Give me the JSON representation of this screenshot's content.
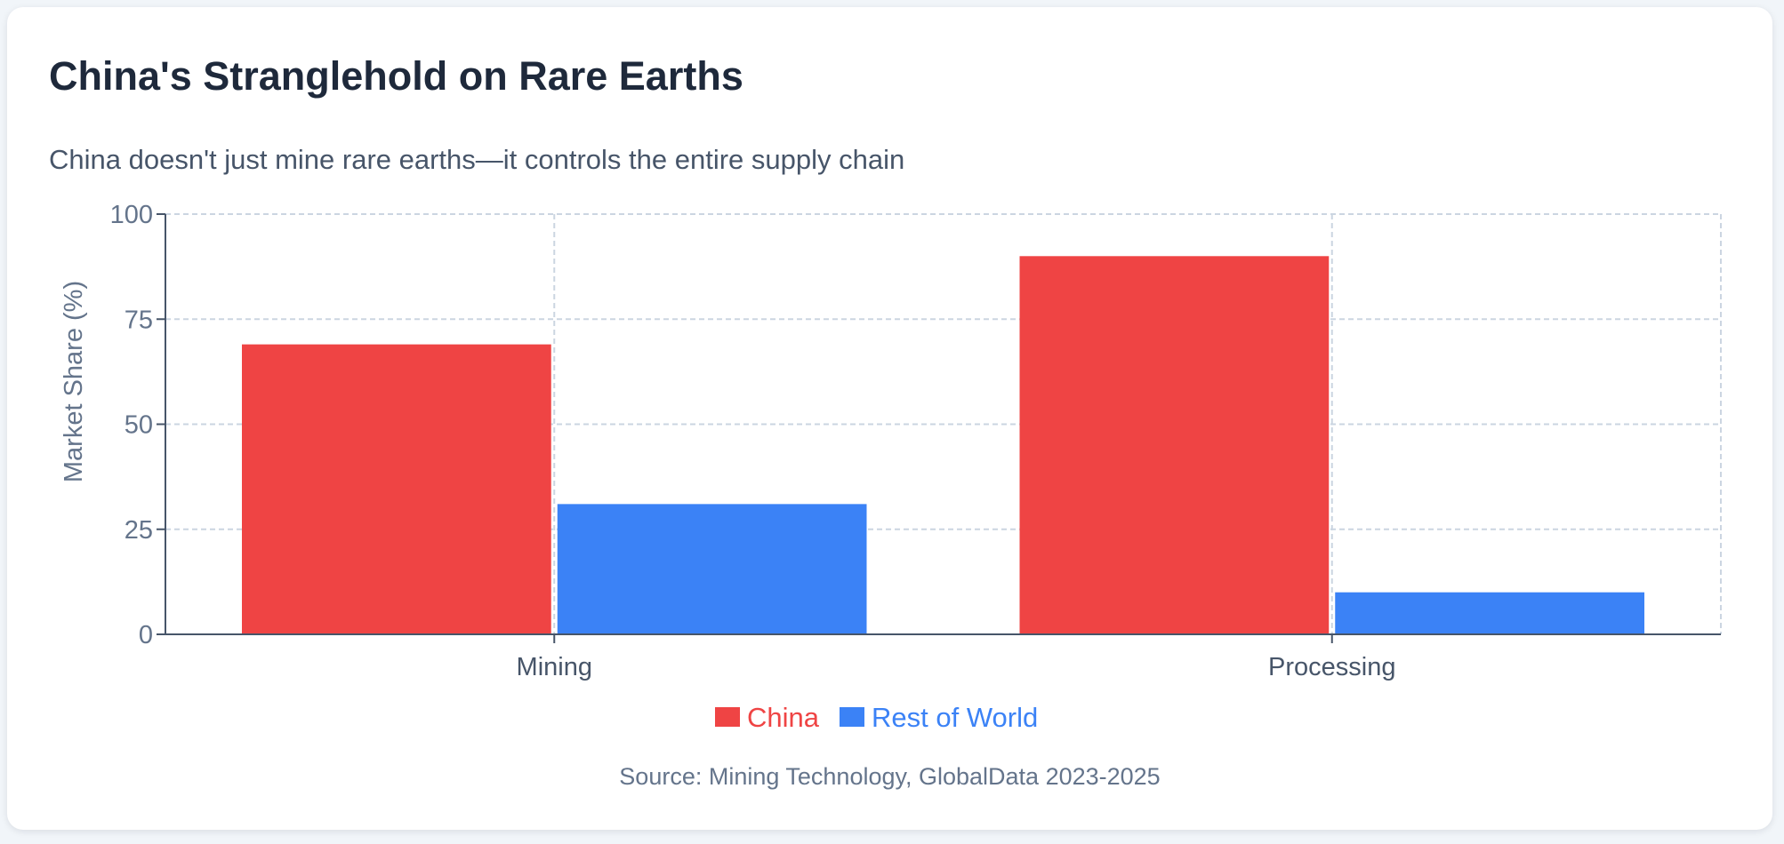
{
  "title": "China's Stranglehold on Rare Earths",
  "subtitle": "China doesn't just mine rare earths—it controls the entire supply chain",
  "source": "Source: Mining Technology, GlobalData 2023-2025",
  "chart_data": {
    "type": "bar",
    "categories": [
      "Mining",
      "Processing"
    ],
    "series": [
      {
        "name": "China",
        "values": [
          69,
          90
        ],
        "color": "#ef4444"
      },
      {
        "name": "Rest of World",
        "values": [
          31,
          10
        ],
        "color": "#3b82f6"
      }
    ],
    "xlabel": "",
    "ylabel": "Market Share (%)",
    "ylim": [
      0,
      100
    ],
    "yticks": [
      0,
      25,
      50,
      75,
      100
    ],
    "grid": true,
    "legend": "bottom-center"
  }
}
